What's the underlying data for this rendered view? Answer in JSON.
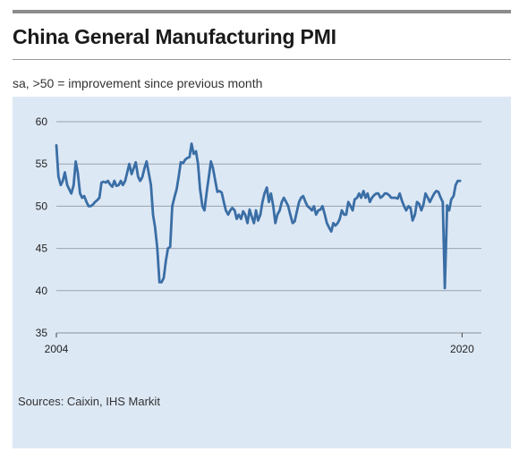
{
  "header": {
    "title": "China General Manufacturing PMI",
    "subtitle": "sa, >50 = improvement since previous month"
  },
  "footer": {
    "source": "Sources: Caixin, IHS Markit"
  },
  "colors": {
    "line": "#3a6ea5",
    "panel": "#dde8f5",
    "grid": "#9aa3ad"
  },
  "chart_data": {
    "type": "line",
    "title": "China General Manufacturing PMI",
    "subtitle": "sa, >50 = improvement since previous month",
    "xlabel": "",
    "ylabel": "",
    "xlim": [
      2004.25,
      2020.75
    ],
    "ylim": [
      35,
      60
    ],
    "yticks": [
      35,
      40,
      45,
      50,
      55,
      60
    ],
    "xticks": [
      {
        "value": 2004.25,
        "label": "2004"
      },
      {
        "value": 2020.0,
        "label": "2020"
      }
    ],
    "grid": "horizontal",
    "legend": "none",
    "series": [
      {
        "points": [
          [
            2004.25,
            57.2
          ],
          [
            2004.33,
            53.5
          ],
          [
            2004.42,
            52.5
          ],
          [
            2004.5,
            53.0
          ],
          [
            2004.58,
            54.0
          ],
          [
            2004.67,
            52.5
          ],
          [
            2004.75,
            52.0
          ],
          [
            2004.83,
            51.5
          ],
          [
            2004.92,
            52.5
          ],
          [
            2005.0,
            55.3
          ],
          [
            2005.08,
            54.0
          ],
          [
            2005.17,
            51.5
          ],
          [
            2005.25,
            51.0
          ],
          [
            2005.33,
            51.2
          ],
          [
            2005.42,
            50.5
          ],
          [
            2005.5,
            50.0
          ],
          [
            2005.58,
            50.0
          ],
          [
            2005.67,
            50.2
          ],
          [
            2005.75,
            50.5
          ],
          [
            2005.83,
            50.7
          ],
          [
            2005.92,
            51.0
          ],
          [
            2006.0,
            52.8
          ],
          [
            2006.08,
            52.9
          ],
          [
            2006.17,
            52.8
          ],
          [
            2006.25,
            53.0
          ],
          [
            2006.33,
            52.6
          ],
          [
            2006.42,
            52.3
          ],
          [
            2006.5,
            53.0
          ],
          [
            2006.58,
            52.4
          ],
          [
            2006.67,
            52.5
          ],
          [
            2006.75,
            53.0
          ],
          [
            2006.83,
            52.5
          ],
          [
            2006.92,
            53.0
          ],
          [
            2007.0,
            54.0
          ],
          [
            2007.08,
            55.0
          ],
          [
            2007.17,
            53.8
          ],
          [
            2007.25,
            54.5
          ],
          [
            2007.33,
            55.2
          ],
          [
            2007.42,
            53.5
          ],
          [
            2007.5,
            53.0
          ],
          [
            2007.58,
            53.4
          ],
          [
            2007.67,
            54.5
          ],
          [
            2007.75,
            55.3
          ],
          [
            2007.83,
            54.0
          ],
          [
            2007.92,
            52.5
          ],
          [
            2008.0,
            49.0
          ],
          [
            2008.08,
            47.5
          ],
          [
            2008.17,
            45.0
          ],
          [
            2008.25,
            41.0
          ],
          [
            2008.33,
            41.0
          ],
          [
            2008.42,
            41.5
          ],
          [
            2008.5,
            43.5
          ],
          [
            2008.58,
            45.0
          ],
          [
            2008.67,
            45.2
          ],
          [
            2008.75,
            50.0
          ],
          [
            2008.83,
            51.0
          ],
          [
            2008.92,
            52.0
          ],
          [
            2009.0,
            53.5
          ],
          [
            2009.08,
            55.2
          ],
          [
            2009.17,
            55.1
          ],
          [
            2009.25,
            55.5
          ],
          [
            2009.33,
            55.7
          ],
          [
            2009.42,
            55.8
          ],
          [
            2009.5,
            57.4
          ],
          [
            2009.58,
            56.2
          ],
          [
            2009.67,
            56.5
          ],
          [
            2009.75,
            55.0
          ],
          [
            2009.83,
            52.0
          ],
          [
            2009.92,
            50.0
          ],
          [
            2010.0,
            49.5
          ],
          [
            2010.08,
            51.5
          ],
          [
            2010.17,
            53.5
          ],
          [
            2010.25,
            55.3
          ],
          [
            2010.33,
            54.5
          ],
          [
            2010.42,
            53.0
          ],
          [
            2010.5,
            51.7
          ],
          [
            2010.58,
            51.8
          ],
          [
            2010.67,
            51.6
          ],
          [
            2010.75,
            50.5
          ],
          [
            2010.83,
            49.5
          ],
          [
            2010.92,
            49.0
          ],
          [
            2011.0,
            49.5
          ],
          [
            2011.08,
            49.8
          ],
          [
            2011.17,
            49.5
          ],
          [
            2011.25,
            48.5
          ],
          [
            2011.33,
            49.0
          ],
          [
            2011.42,
            48.5
          ],
          [
            2011.5,
            49.4
          ],
          [
            2011.58,
            49.0
          ],
          [
            2011.67,
            48.0
          ],
          [
            2011.75,
            49.6
          ],
          [
            2011.83,
            48.8
          ],
          [
            2011.92,
            48.0
          ],
          [
            2012.0,
            49.5
          ],
          [
            2012.08,
            48.3
          ],
          [
            2012.17,
            49.0
          ],
          [
            2012.25,
            50.5
          ],
          [
            2012.33,
            51.5
          ],
          [
            2012.42,
            52.2
          ],
          [
            2012.5,
            50.5
          ],
          [
            2012.58,
            51.5
          ],
          [
            2012.67,
            50.0
          ],
          [
            2012.75,
            48.0
          ],
          [
            2012.83,
            49.0
          ],
          [
            2012.92,
            49.5
          ],
          [
            2013.0,
            50.5
          ],
          [
            2013.08,
            51.0
          ],
          [
            2013.17,
            50.5
          ],
          [
            2013.25,
            50.0
          ],
          [
            2013.33,
            49.0
          ],
          [
            2013.42,
            48.0
          ],
          [
            2013.5,
            48.2
          ],
          [
            2013.58,
            49.3
          ],
          [
            2013.67,
            50.5
          ],
          [
            2013.75,
            51.0
          ],
          [
            2013.83,
            51.2
          ],
          [
            2013.92,
            50.5
          ],
          [
            2014.0,
            50.0
          ],
          [
            2014.08,
            49.8
          ],
          [
            2014.17,
            49.5
          ],
          [
            2014.25,
            50.0
          ],
          [
            2014.33,
            49.0
          ],
          [
            2014.42,
            49.5
          ],
          [
            2014.5,
            49.6
          ],
          [
            2014.58,
            50.0
          ],
          [
            2014.67,
            49.0
          ],
          [
            2014.75,
            48.0
          ],
          [
            2014.83,
            47.5
          ],
          [
            2014.92,
            47.0
          ],
          [
            2015.0,
            48.0
          ],
          [
            2015.08,
            47.7
          ],
          [
            2015.17,
            48.0
          ],
          [
            2015.25,
            48.5
          ],
          [
            2015.33,
            49.5
          ],
          [
            2015.42,
            49.0
          ],
          [
            2015.5,
            49.0
          ],
          [
            2015.58,
            50.5
          ],
          [
            2015.67,
            50.0
          ],
          [
            2015.75,
            49.5
          ],
          [
            2015.83,
            50.8
          ],
          [
            2015.92,
            51.0
          ],
          [
            2016.0,
            51.5
          ],
          [
            2016.08,
            51.0
          ],
          [
            2016.17,
            51.8
          ],
          [
            2016.25,
            51.0
          ],
          [
            2016.33,
            51.5
          ],
          [
            2016.42,
            50.5
          ],
          [
            2016.5,
            51.0
          ],
          [
            2016.58,
            51.3
          ],
          [
            2016.67,
            51.5
          ],
          [
            2016.75,
            51.5
          ],
          [
            2016.83,
            51.0
          ],
          [
            2016.92,
            51.2
          ],
          [
            2017.0,
            51.5
          ],
          [
            2017.08,
            51.5
          ],
          [
            2017.17,
            51.3
          ],
          [
            2017.25,
            51.0
          ],
          [
            2017.33,
            51.0
          ],
          [
            2017.42,
            51.0
          ],
          [
            2017.5,
            50.9
          ],
          [
            2017.58,
            51.5
          ],
          [
            2017.67,
            50.6
          ],
          [
            2017.75,
            50.0
          ],
          [
            2017.83,
            49.5
          ],
          [
            2017.92,
            50.0
          ],
          [
            2018.0,
            49.8
          ],
          [
            2018.08,
            48.3
          ],
          [
            2018.17,
            49.0
          ],
          [
            2018.25,
            50.5
          ],
          [
            2018.33,
            50.3
          ],
          [
            2018.42,
            49.5
          ],
          [
            2018.5,
            50.2
          ],
          [
            2018.58,
            51.5
          ],
          [
            2018.67,
            51.0
          ],
          [
            2018.75,
            50.5
          ],
          [
            2018.83,
            51.0
          ],
          [
            2018.92,
            51.5
          ],
          [
            2019.0,
            51.8
          ],
          [
            2019.08,
            51.7
          ],
          [
            2019.17,
            51.0
          ],
          [
            2019.25,
            50.5
          ],
          [
            2019.33,
            40.3
          ],
          [
            2019.42,
            50.1
          ],
          [
            2019.5,
            49.5
          ],
          [
            2019.58,
            50.8
          ],
          [
            2019.67,
            51.2
          ],
          [
            2019.75,
            52.5
          ],
          [
            2019.83,
            53.0
          ],
          [
            2019.92,
            53.0
          ]
        ]
      }
    ]
  }
}
